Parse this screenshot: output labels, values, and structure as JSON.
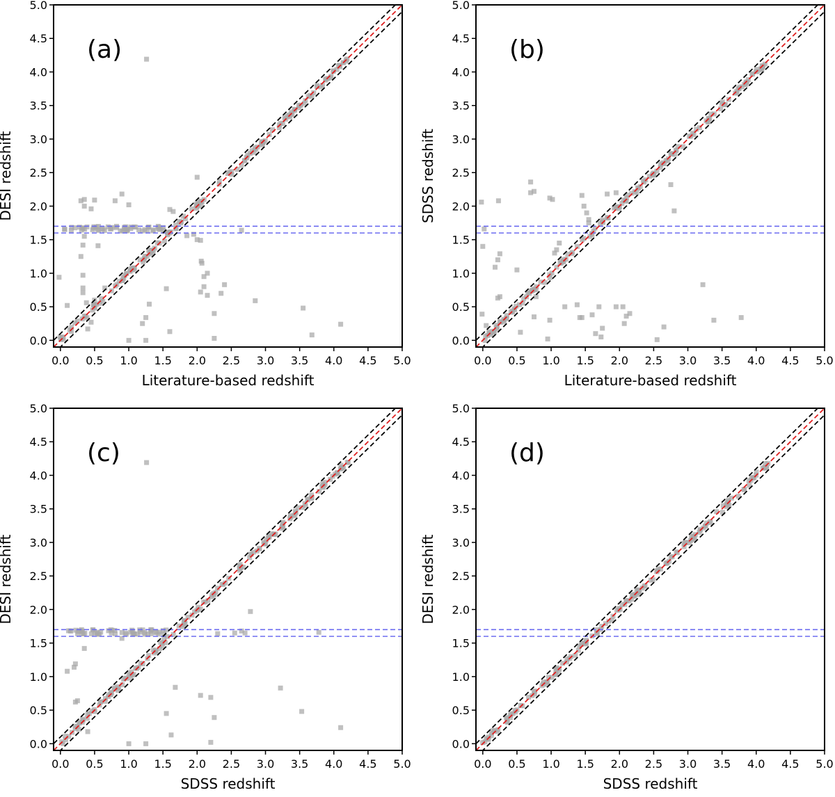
{
  "chart_data": [
    {
      "type": "scatter",
      "panel_label": "(a)",
      "xlabel": "Literature-based redshift",
      "ylabel": "DESI redshift",
      "xlim": [
        -0.1,
        5.0
      ],
      "ylim": [
        -0.1,
        5.0
      ],
      "xticks": [
        "0.0",
        "0.5",
        "1.0",
        "1.5",
        "2.0",
        "2.5",
        "3.0",
        "3.5",
        "4.0",
        "4.5",
        "5.0"
      ],
      "yticks": [
        "0.0",
        "0.5",
        "1.0",
        "1.5",
        "2.0",
        "2.5",
        "3.0",
        "3.5",
        "4.0",
        "4.5",
        "5.0"
      ],
      "reference_lines": {
        "one_to_one": "red dashed",
        "tolerance_band": "black dashed, ±0.1",
        "horizontal": [
          1.6,
          1.7
        ]
      },
      "diagonal_points": true,
      "band_points": true,
      "points": [
        [
          1.26,
          4.19
        ],
        [
          -0.02,
          0.94
        ],
        [
          0.1,
          0.52
        ],
        [
          0.3,
          1.25
        ],
        [
          0.33,
          1.42
        ],
        [
          0.35,
          1.55
        ],
        [
          0.33,
          0.97
        ],
        [
          0.33,
          0.78
        ],
        [
          0.33,
          0.71
        ],
        [
          0.38,
          0.56
        ],
        [
          0.35,
          0.36
        ],
        [
          0.4,
          0.17
        ],
        [
          0.45,
          0.27
        ],
        [
          0.47,
          0.45
        ],
        [
          0.5,
          0.6
        ],
        [
          0.6,
          0.62
        ],
        [
          0.65,
          0.78
        ],
        [
          0.55,
          1.41
        ],
        [
          0.3,
          2.08
        ],
        [
          0.35,
          2.1
        ],
        [
          0.35,
          2.0
        ],
        [
          0.45,
          1.96
        ],
        [
          0.5,
          2.09
        ],
        [
          0.8,
          2.08
        ],
        [
          0.9,
          2.18
        ],
        [
          1.0,
          2.02
        ],
        [
          1.05,
          1.05
        ],
        [
          1.0,
          0.0
        ],
        [
          1.2,
          0.25
        ],
        [
          1.25,
          0.0
        ],
        [
          1.25,
          0.34
        ],
        [
          1.3,
          0.54
        ],
        [
          1.55,
          0.77
        ],
        [
          1.6,
          0.13
        ],
        [
          1.6,
          1.95
        ],
        [
          1.65,
          1.92
        ],
        [
          1.8,
          1.85
        ],
        [
          2.0,
          2.43
        ],
        [
          2.0,
          1.5
        ],
        [
          2.05,
          1.49
        ],
        [
          2.06,
          1.18
        ],
        [
          2.07,
          1.15
        ],
        [
          2.1,
          0.8
        ],
        [
          2.1,
          0.95
        ],
        [
          2.15,
          1.0
        ],
        [
          2.05,
          0.72
        ],
        [
          2.15,
          0.67
        ],
        [
          2.25,
          0.4
        ],
        [
          2.25,
          0.03
        ],
        [
          2.35,
          0.7
        ],
        [
          2.4,
          0.83
        ],
        [
          2.85,
          0.59
        ],
        [
          3.55,
          0.48
        ],
        [
          3.68,
          0.08
        ],
        [
          4.1,
          0.24
        ],
        [
          1.85,
          1.56
        ],
        [
          1.95,
          1.58
        ],
        [
          2.65,
          1.64
        ]
      ]
    },
    {
      "type": "scatter",
      "panel_label": "(b)",
      "xlabel": "Literature-based redshift",
      "ylabel": "SDSS redshift",
      "xlim": [
        -0.1,
        5.0
      ],
      "ylim": [
        -0.1,
        5.0
      ],
      "xticks": [
        "0.0",
        "0.5",
        "1.0",
        "1.5",
        "2.0",
        "2.5",
        "3.0",
        "3.5",
        "4.0",
        "4.5",
        "5.0"
      ],
      "yticks": [
        "0.0",
        "0.5",
        "1.0",
        "1.5",
        "2.0",
        "2.5",
        "3.0",
        "3.5",
        "4.0",
        "4.5",
        "5.0"
      ],
      "reference_lines": {
        "one_to_one": "red dashed",
        "tolerance_band": "black dashed, ±0.1",
        "horizontal": [
          1.6,
          1.7
        ]
      },
      "diagonal_points": true,
      "band_points": false,
      "points": [
        [
          -0.02,
          2.06
        ],
        [
          0.02,
          1.66
        ],
        [
          0.0,
          1.4
        ],
        [
          -0.01,
          0.39
        ],
        [
          0.05,
          0.22
        ],
        [
          0.18,
          1.09
        ],
        [
          0.22,
          1.2
        ],
        [
          0.25,
          1.29
        ],
        [
          0.22,
          0.63
        ],
        [
          0.25,
          0.65
        ],
        [
          0.23,
          2.08
        ],
        [
          0.5,
          1.05
        ],
        [
          0.55,
          0.12
        ],
        [
          0.7,
          2.36
        ],
        [
          0.7,
          2.2
        ],
        [
          0.75,
          2.22
        ],
        [
          0.75,
          0.35
        ],
        [
          0.78,
          0.65
        ],
        [
          0.95,
          0.02
        ],
        [
          0.98,
          0.3
        ],
        [
          0.98,
          2.12
        ],
        [
          1.02,
          2.1
        ],
        [
          1.05,
          1.3
        ],
        [
          1.08,
          1.35
        ],
        [
          1.12,
          1.45
        ],
        [
          1.2,
          0.5
        ],
        [
          1.38,
          0.53
        ],
        [
          1.42,
          0.34
        ],
        [
          1.45,
          0.34
        ],
        [
          1.45,
          2.16
        ],
        [
          1.48,
          2.0
        ],
        [
          1.52,
          1.9
        ],
        [
          1.55,
          1.8
        ],
        [
          1.55,
          1.75
        ],
        [
          1.6,
          0.38
        ],
        [
          1.65,
          0.1
        ],
        [
          1.73,
          0.05
        ],
        [
          1.75,
          0.18
        ],
        [
          1.7,
          0.5
        ],
        [
          1.82,
          2.18
        ],
        [
          1.95,
          2.2
        ],
        [
          1.95,
          0.5
        ],
        [
          2.05,
          0.5
        ],
        [
          2.07,
          0.25
        ],
        [
          2.1,
          0.36
        ],
        [
          2.15,
          0.4
        ],
        [
          2.55,
          0.01
        ],
        [
          2.65,
          0.2
        ],
        [
          2.75,
          2.32
        ],
        [
          2.8,
          1.93
        ],
        [
          3.22,
          0.83
        ],
        [
          3.38,
          0.3
        ],
        [
          3.78,
          0.34
        ]
      ]
    },
    {
      "type": "scatter",
      "panel_label": "(c)",
      "xlabel": "SDSS redshift",
      "ylabel": "DESI redshift",
      "xlim": [
        -0.1,
        5.0
      ],
      "ylim": [
        -0.1,
        5.0
      ],
      "xticks": [
        "0.0",
        "0.5",
        "1.0",
        "1.5",
        "2.0",
        "2.5",
        "3.0",
        "3.5",
        "4.0",
        "4.5",
        "5.0"
      ],
      "yticks": [
        "0.0",
        "0.5",
        "1.0",
        "1.5",
        "2.0",
        "2.5",
        "3.0",
        "3.5",
        "4.0",
        "4.5",
        "5.0"
      ],
      "reference_lines": {
        "one_to_one": "red dashed",
        "tolerance_band": "black dashed, ±0.1",
        "horizontal": [
          1.6,
          1.7
        ]
      },
      "diagonal_points": true,
      "band_points": true,
      "points": [
        [
          1.26,
          4.19
        ],
        [
          0.1,
          1.08
        ],
        [
          0.2,
          1.14
        ],
        [
          0.22,
          1.19
        ],
        [
          0.22,
          0.62
        ],
        [
          0.25,
          0.64
        ],
        [
          0.35,
          1.42
        ],
        [
          0.32,
          0.32
        ],
        [
          0.4,
          0.18
        ],
        [
          0.9,
          1.57
        ],
        [
          1.0,
          0.0
        ],
        [
          1.25,
          0.0
        ],
        [
          1.55,
          0.45
        ],
        [
          1.62,
          0.13
        ],
        [
          1.68,
          0.84
        ],
        [
          2.05,
          0.72
        ],
        [
          2.2,
          0.69
        ],
        [
          2.25,
          0.39
        ],
        [
          2.2,
          0.02
        ],
        [
          2.78,
          1.97
        ],
        [
          3.22,
          0.83
        ],
        [
          3.53,
          0.48
        ],
        [
          3.78,
          1.66
        ],
        [
          4.1,
          0.24
        ],
        [
          2.3,
          1.64
        ],
        [
          2.55,
          1.65
        ],
        [
          2.65,
          1.68
        ],
        [
          2.7,
          1.65
        ]
      ]
    },
    {
      "type": "scatter",
      "panel_label": "(d)",
      "xlabel": "SDSS redshift",
      "ylabel": "DESI redshift",
      "xlim": [
        -0.1,
        5.0
      ],
      "ylim": [
        -0.1,
        5.0
      ],
      "xticks": [
        "0.0",
        "0.5",
        "1.0",
        "1.5",
        "2.0",
        "2.5",
        "3.0",
        "3.5",
        "4.0",
        "4.5",
        "5.0"
      ],
      "yticks": [
        "0.0",
        "0.5",
        "1.0",
        "1.5",
        "2.0",
        "2.5",
        "3.0",
        "3.5",
        "4.0",
        "4.5",
        "5.0"
      ],
      "reference_lines": {
        "one_to_one": "red dashed",
        "tolerance_band": "black dashed, ±0.1",
        "horizontal": [
          1.6,
          1.7
        ]
      },
      "diagonal_points": true,
      "band_points": false,
      "points": []
    }
  ],
  "colors": {
    "axes": "#000000",
    "diagonal": "#e02020",
    "tolerance": "#000000",
    "horizontal": "#6b6bf0",
    "points": "#a8a8a8"
  }
}
